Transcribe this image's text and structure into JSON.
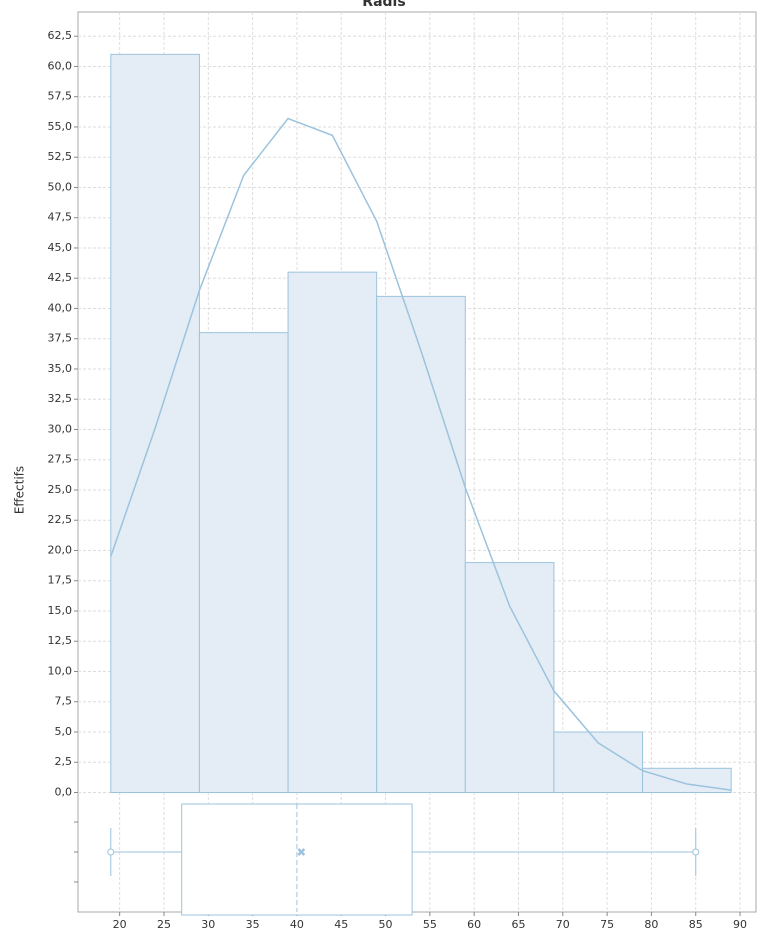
{
  "chart_data": {
    "type": "histogram",
    "title": "Radis",
    "ylabel": "Effectifs",
    "bins": [
      19,
      29,
      39,
      49,
      59,
      69,
      79,
      89
    ],
    "values": [
      61,
      38,
      43,
      41,
      19,
      5,
      2
    ],
    "color": "#e4edf6",
    "edge_color": "#9cc3dd",
    "curve": {
      "x": [
        19,
        24,
        29,
        34,
        39,
        44,
        49,
        54,
        59,
        64,
        69,
        74,
        79,
        84,
        89
      ],
      "values": [
        19.5,
        30.1,
        41.5,
        51.0,
        55.7,
        54.3,
        47.2,
        36.5,
        25.2,
        15.4,
        8.4,
        4.1,
        1.8,
        0.7,
        0.2
      ]
    },
    "boxplot": {
      "min": 19,
      "q1": 27,
      "median": 40,
      "mean": 40.5,
      "q3": 53,
      "max": 85
    },
    "xlim": [
      15.3,
      91.8
    ],
    "ylim": [
      0,
      64.5
    ],
    "xticks": [
      20,
      25,
      30,
      35,
      40,
      45,
      50,
      55,
      60,
      65,
      70,
      75,
      80,
      85,
      90
    ],
    "yticks": [
      {
        "value": 0,
        "label": "0,0"
      },
      {
        "value": 2.5,
        "label": "2,5"
      },
      {
        "value": 5,
        "label": "5,0"
      },
      {
        "value": 7.5,
        "label": "7,5"
      },
      {
        "value": 10,
        "label": "10,0"
      },
      {
        "value": 12.5,
        "label": "12,5"
      },
      {
        "value": 15,
        "label": "15,0"
      },
      {
        "value": 17.5,
        "label": "17,5"
      },
      {
        "value": 20,
        "label": "20,0"
      },
      {
        "value": 22.5,
        "label": "22,5"
      },
      {
        "value": 25,
        "label": "25,0"
      },
      {
        "value": 27.5,
        "label": "27,5"
      },
      {
        "value": 30,
        "label": "30,0"
      },
      {
        "value": 32.5,
        "label": "32,5"
      },
      {
        "value": 35,
        "label": "35,0"
      },
      {
        "value": 37.5,
        "label": "37,5"
      },
      {
        "value": 40,
        "label": "40,0"
      },
      {
        "value": 42.5,
        "label": "42,5"
      },
      {
        "value": 45,
        "label": "45,0"
      },
      {
        "value": 47.5,
        "label": "47,5"
      },
      {
        "value": 50,
        "label": "50,0"
      },
      {
        "value": 52.5,
        "label": "52,5"
      },
      {
        "value": 55,
        "label": "55,0"
      },
      {
        "value": 57.5,
        "label": "57,5"
      },
      {
        "value": 60,
        "label": "60,0"
      },
      {
        "value": 62.5,
        "label": "62,5"
      }
    ],
    "grid": true
  }
}
